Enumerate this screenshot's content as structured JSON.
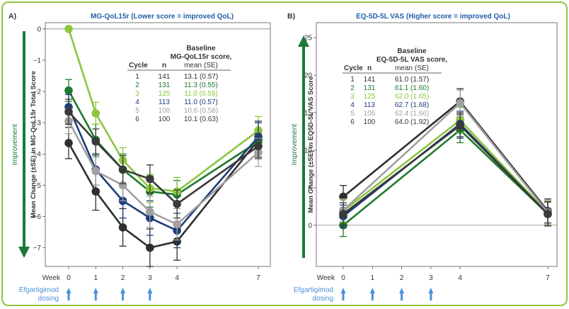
{
  "colors": {
    "border": "#8cc63e",
    "title": "#1f5fa8",
    "improvement": "#1a7a3a",
    "dosing": "#4a90d9",
    "axis": "#555555",
    "text": "#333333"
  },
  "cycle_colors": [
    "#2e2e2e",
    "#1e7a2e",
    "#8cc63e",
    "#1f3d7a",
    "#a0a0a0",
    "#3a3a3a"
  ],
  "x_axis": {
    "week_label": "Week",
    "dosing_label_line1": "Efgartigimod",
    "dosing_label_line2": "dosing"
  },
  "chart_data": [
    {
      "panel_label": "A)",
      "type": "line",
      "title": "MG-QoL15r (Lower score = improved QoL)",
      "ylabel": "Mean Change (±SE) in MG-QoL15r Total Score",
      "improvement_label": "Improvement",
      "improvement_direction": "down",
      "ylim": [
        -7.6,
        0.2
      ],
      "yticks": [
        0,
        -1,
        -2,
        -3,
        -4,
        -5,
        -6,
        -7
      ],
      "yticklabels": [
        "0",
        "−1",
        "−2",
        "−3",
        "−4",
        "−5",
        "−6",
        "−7"
      ],
      "x": [
        0,
        1,
        2,
        3,
        4,
        7
      ],
      "xticklabels": [
        "0",
        "1",
        "2",
        "3",
        "4",
        "7"
      ],
      "dosing_weeks": [
        0,
        1,
        2,
        3
      ],
      "table": {
        "header_top": "Baseline",
        "header_cols": [
          "Cycle",
          "n",
          "MG-QoL15r score,"
        ],
        "header_sub": "mean (SE)",
        "rows": [
          {
            "cycle": "1",
            "n": "141",
            "value": "13.1 (0.57)"
          },
          {
            "cycle": "2",
            "n": "131",
            "value": "11.3 (0.55)"
          },
          {
            "cycle": "3",
            "n": "125",
            "value": "11.0 (0.59)"
          },
          {
            "cycle": "4",
            "n": "113",
            "value": "11.0 (0.57)"
          },
          {
            "cycle": "5",
            "n": "106",
            "value": "10.6 (0.58)"
          },
          {
            "cycle": "6",
            "n": "100",
            "value": "10.1 (0.63)"
          }
        ]
      },
      "series": [
        {
          "values": [
            -3.65,
            -5.2,
            -6.35,
            -7.0,
            -6.8,
            -3.55
          ],
          "se": [
            0.5,
            0.6,
            0.6,
            0.6,
            0.6,
            0.55
          ]
        },
        {
          "values": [
            -1.97,
            -3.55,
            -4.5,
            -5.2,
            -5.3,
            -3.6
          ],
          "se": [
            0.35,
            0.5,
            0.5,
            0.5,
            0.45,
            0.4
          ]
        },
        {
          "values": [
            0,
            -2.7,
            -4.2,
            -5.1,
            -5.2,
            -3.25
          ],
          "se": [
            0,
            0.35,
            0.4,
            0.45,
            0.45,
            0.45
          ]
        },
        {
          "values": [
            -2.5,
            -4.5,
            -5.5,
            -6.05,
            -6.45,
            -3.45
          ],
          "se": [
            0.4,
            0.5,
            0.55,
            0.55,
            0.55,
            0.5
          ]
        },
        {
          "values": [
            -2.95,
            -4.55,
            -5.0,
            -5.85,
            -6.25,
            -3.95
          ],
          "se": [
            0.4,
            0.45,
            0.5,
            0.5,
            0.5,
            0.45
          ]
        },
        {
          "values": [
            -2.65,
            -3.6,
            -4.5,
            -4.8,
            -5.6,
            -3.75
          ],
          "se": [
            0.4,
            0.4,
            0.45,
            0.45,
            0.45,
            0.4
          ]
        }
      ]
    },
    {
      "panel_label": "B)",
      "type": "line",
      "title": "EQ-5D-5L VAS (Higher score = improved QoL)",
      "ylabel": "Mean Change (±SE) in EQ5D-5L VAS Score",
      "improvement_label": "Improvement",
      "improvement_direction": "up",
      "ylim": [
        -5.5,
        27
      ],
      "yticks": [
        25,
        20,
        15,
        10,
        5,
        0
      ],
      "yticklabels": [
        "25",
        "20",
        "15",
        "10",
        "5",
        "0"
      ],
      "x": [
        0,
        1,
        2,
        3,
        4,
        7
      ],
      "xticklabels": [
        "0",
        "1",
        "2",
        "3",
        "4",
        "7"
      ],
      "dosing_weeks": [
        0,
        1,
        2,
        3
      ],
      "table": {
        "header_top": "Baseline",
        "header_cols": [
          "Cycle",
          "n",
          "EQ-5D-5L VAS score,"
        ],
        "header_sub": "mean (SE)",
        "rows": [
          {
            "cycle": "1",
            "n": "141",
            "value": "61.0 (1.57)"
          },
          {
            "cycle": "2",
            "n": "131",
            "value": "61.1 (1.60)"
          },
          {
            "cycle": "3",
            "n": "125",
            "value": "62.0 (1.65)"
          },
          {
            "cycle": "4",
            "n": "113",
            "value": "62.7 (1.68)"
          },
          {
            "cycle": "5",
            "n": "106",
            "value": "62.4 (1.66)"
          },
          {
            "cycle": "6",
            "n": "100",
            "value": "64.0 (1.92)"
          }
        ]
      },
      "series": [
        {
          "points": [
            [
              0,
              3.8
            ],
            [
              4,
              16.5
            ],
            [
              7,
              1.9
            ]
          ],
          "se": [
            1.5,
            1.7,
            1.6
          ]
        },
        {
          "points": [
            [
              0,
              0.0
            ],
            [
              4,
              12.7
            ],
            [
              7,
              1.5
            ]
          ],
          "se": [
            1.5,
            1.7,
            1.6
          ]
        },
        {
          "points": [
            [
              0,
              1.9
            ],
            [
              4,
              14.0
            ],
            [
              7,
              1.6
            ]
          ],
          "se": [
            1.5,
            1.7,
            1.6
          ]
        },
        {
          "points": [
            [
              0,
              1.2
            ],
            [
              4,
              13.5
            ],
            [
              7,
              1.5
            ]
          ],
          "se": [
            1.5,
            1.7,
            1.6
          ]
        },
        {
          "points": [
            [
              0,
              2.0
            ],
            [
              4,
              16.3
            ],
            [
              7,
              1.7
            ]
          ],
          "se": [
            1.5,
            1.7,
            1.6
          ]
        },
        {
          "points": [
            [
              0,
              1.5
            ],
            [
              4,
              13.3
            ],
            [
              7,
              1.5
            ]
          ],
          "se": [
            1.5,
            1.7,
            1.6
          ]
        }
      ]
    }
  ]
}
